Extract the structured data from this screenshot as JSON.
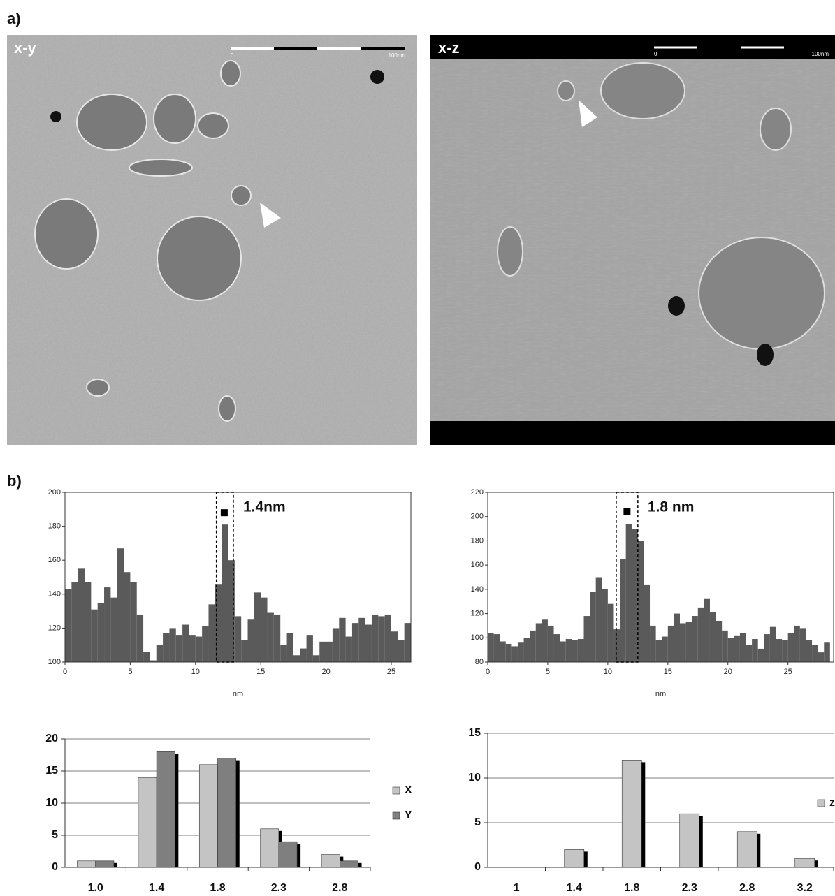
{
  "panel_labels": [
    "a)",
    "b)"
  ],
  "images": [
    {
      "label": "x-y",
      "scale_labels": [
        "0",
        "100nm"
      ]
    },
    {
      "label": "x-z",
      "scale_labels": [
        "0",
        "100nm"
      ]
    }
  ],
  "chart_data": [
    {
      "type": "histogram",
      "xlabel": "nm",
      "color": "#5a5a5a",
      "annotation": "1.4nm",
      "bins": [
        0,
        0.5,
        1,
        1.5,
        2,
        2.5,
        3,
        3.5,
        4,
        4.5,
        5,
        5.5,
        6,
        6.5,
        7,
        7.5,
        8,
        8.5,
        9,
        9.5,
        10,
        10.5,
        11,
        11.5,
        12,
        12.5,
        13,
        13.5,
        14,
        14.5,
        15,
        15.5,
        16,
        16.5,
        17,
        17.5,
        18,
        18.5,
        19,
        19.5,
        20,
        20.5,
        21,
        21.5,
        22,
        22.5,
        23,
        23.5,
        24,
        24.5,
        25,
        25.5,
        26,
        26.5
      ],
      "values": [
        143,
        147,
        155,
        147,
        131,
        135,
        144,
        138,
        167,
        153,
        147,
        128,
        106,
        101,
        110,
        117,
        120,
        116,
        122,
        116,
        115,
        121,
        134,
        146,
        181,
        160,
        127,
        113,
        125,
        141,
        138,
        129,
        128,
        110,
        117,
        104,
        108,
        116,
        104,
        112,
        112,
        120,
        126,
        115,
        123,
        126,
        122,
        128,
        127,
        128,
        118,
        113,
        123
      ],
      "highlight": [
        11.6,
        12.9
      ],
      "marker": [
        12.2,
        188
      ],
      "xlim": [
        0,
        26.5
      ],
      "xticks": [
        0,
        5,
        10,
        15,
        20,
        25
      ],
      "ylim": [
        100,
        200
      ],
      "yticks": [
        100,
        120,
        140,
        160,
        180,
        200
      ],
      "grid": false
    },
    {
      "type": "histogram",
      "xlabel": "nm",
      "color": "#5a5a5a",
      "annotation": "1.8 nm",
      "bins": [
        0,
        0.5,
        1,
        1.5,
        2,
        2.5,
        3,
        3.5,
        4,
        4.5,
        5,
        5.5,
        6,
        6.5,
        7,
        7.5,
        8,
        8.5,
        9,
        9.5,
        10,
        10.5,
        11,
        11.5,
        12,
        12.5,
        13,
        13.5,
        14,
        14.5,
        15,
        15.5,
        16,
        16.5,
        17,
        17.5,
        18,
        18.5,
        19,
        19.5,
        20,
        20.5,
        21,
        21.5,
        22,
        22.5,
        23,
        23.5,
        24,
        24.5,
        25,
        25.5,
        26,
        26.5,
        27,
        27.5,
        28,
        28.5
      ],
      "values": [
        104,
        103,
        97,
        95,
        93,
        96,
        100,
        106,
        112,
        115,
        110,
        103,
        97,
        99,
        98,
        99,
        118,
        138,
        150,
        140,
        128,
        107,
        165,
        194,
        190,
        180,
        144,
        110,
        98,
        101,
        110,
        120,
        112,
        113,
        118,
        125,
        132,
        121,
        114,
        106,
        100,
        102,
        104,
        94,
        99,
        91,
        103,
        109,
        99,
        98,
        104,
        110,
        108,
        98,
        94,
        88,
        96
      ],
      "highlight": [
        10.7,
        12.5
      ],
      "marker": [
        11.6,
        204
      ],
      "xlim": [
        0,
        28.8
      ],
      "xticks": [
        0,
        5,
        10,
        15,
        20,
        25
      ],
      "ylim": [
        80,
        220
      ],
      "yticks": [
        80,
        100,
        120,
        140,
        160,
        180,
        200,
        220
      ],
      "grid": false
    },
    {
      "type": "bar",
      "categories": [
        "1.0",
        "1.4",
        "1.8",
        "2.3",
        "2.8"
      ],
      "series": [
        {
          "name": "X",
          "color": "#c4c4c4",
          "values": [
            1,
            14,
            16,
            6,
            2
          ]
        },
        {
          "name": "Y",
          "color": "#7f7f7f",
          "values": [
            1,
            18,
            17,
            4,
            1
          ]
        }
      ],
      "ylim": [
        0,
        20
      ],
      "yticks": [
        0,
        5,
        10,
        15,
        20
      ],
      "grid": true
    },
    {
      "type": "bar",
      "categories": [
        "1",
        "1.4",
        "1.8",
        "2.3",
        "2.8",
        "3.2"
      ],
      "series": [
        {
          "name": "z",
          "color": "#c4c4c4",
          "values": [
            0,
            2,
            12,
            6,
            4,
            1
          ]
        }
      ],
      "ylim": [
        0,
        15
      ],
      "yticks": [
        0,
        5,
        10,
        15
      ],
      "grid": true
    }
  ]
}
